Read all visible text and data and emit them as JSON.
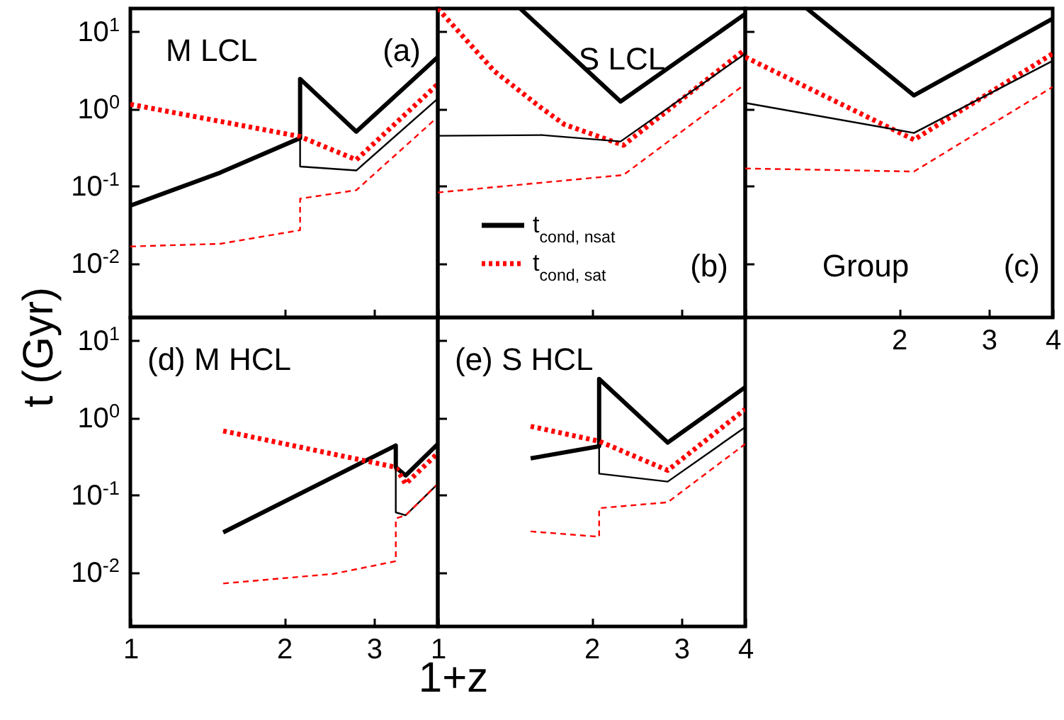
{
  "chart_data": [
    {
      "type": "line",
      "log": "xy",
      "xlim": [
        1,
        4
      ],
      "xticks": [
        1,
        2,
        3,
        4
      ],
      "ylim": [
        0.002,
        20
      ],
      "yticks": [
        {
          "value": 0.01,
          "label": "10$^{-2}$"
        },
        {
          "value": 0.1,
          "label": "10$^{-1}$"
        },
        {
          "value": 1,
          "label": "10$^{0}$"
        },
        {
          "value": 10,
          "label": "10$^{1}$"
        }
      ],
      "tick_labels": "y",
      "ylabel": "t (Gyr)",
      "annotations": [
        "M LCL",
        "(a)"
      ],
      "series": [
        {
          "color": "#000000",
          "line_style": "solid",
          "x": [
            1,
            1.5,
            2.15,
            2.15,
            2.77,
            4
          ],
          "values": [
            0.056,
            0.15,
            0.42,
            2.45,
            0.51,
            4.7
          ]
        },
        {
          "color": "#ff0000",
          "line_style": "dotted",
          "x": [
            1,
            2.15,
            2.77,
            4
          ],
          "values": [
            1.15,
            0.44,
            0.22,
            2.1
          ]
        },
        {
          "color": "#000000",
          "line_style": "solid",
          "x": [
            2.15,
            2.15,
            2.77,
            4
          ],
          "values": [
            0.42,
            0.18,
            0.16,
            1.36
          ]
        },
        {
          "color": "#ff0000",
          "line_style": "dashed",
          "x": [
            1,
            1.5,
            2.15,
            2.15,
            2.77,
            4
          ],
          "values": [
            0.0166,
            0.018,
            0.027,
            0.069,
            0.089,
            0.79
          ]
        }
      ]
    },
    {
      "type": "line",
      "log": "xy",
      "xlim": [
        1,
        4
      ],
      "xticks": [
        1,
        2,
        3,
        4
      ],
      "ylim": [
        0.002,
        20
      ],
      "yticks": [
        0.01,
        0.1,
        1,
        10
      ],
      "tick_labels": false,
      "legend": "bottom left",
      "annotations": [
        "S LCL",
        "(b)"
      ],
      "series": [
        {
          "name": "t$_{cond, nsat}$",
          "color": "#000000",
          "line_style": "solid",
          "x": [
            1.45,
            2.28,
            4
          ],
          "values": [
            20,
            1.25,
            17
          ]
        },
        {
          "name": "t$_{cond, sat}$",
          "color": "#ff0000",
          "line_style": "dotted",
          "x": [
            1,
            1.29,
            1.59,
            1.77,
            2.31,
            4
          ],
          "values": [
            20,
            3.1,
            1.05,
            0.63,
            0.34,
            5.9
          ]
        },
        {
          "color": "#000000",
          "line_style": "solid",
          "x": [
            1,
            1.6,
            2.28,
            4
          ],
          "values": [
            0.45,
            0.46,
            0.38,
            5.2
          ]
        },
        {
          "color": "#ff0000",
          "line_style": "dashed",
          "x": [
            1,
            2.31,
            4
          ],
          "values": [
            0.083,
            0.14,
            2.1
          ]
        }
      ]
    },
    {
      "type": "line",
      "log": "xy",
      "xlim": [
        1,
        4
      ],
      "xticks": [
        {
          "value": 1,
          "label": null
        },
        2,
        3,
        4
      ],
      "ylim": [
        0.002,
        20
      ],
      "yticks": [
        0.01,
        0.1,
        1,
        10
      ],
      "tick_labels": "x",
      "annotations": [
        "Group",
        "(c)"
      ],
      "series": [
        {
          "color": "#000000",
          "line_style": "solid",
          "x": [
            1.32,
            2.14,
            4
          ],
          "values": [
            20,
            1.5,
            14.8
          ]
        },
        {
          "color": "#ff0000",
          "line_style": "dotted",
          "x": [
            1,
            2.14,
            4
          ],
          "values": [
            4.7,
            0.4,
            5.2
          ]
        },
        {
          "color": "#000000",
          "line_style": "solid",
          "x": [
            1,
            2.14,
            4
          ],
          "values": [
            1.2,
            0.49,
            4.2
          ]
        },
        {
          "color": "#ff0000",
          "line_style": "dashed",
          "x": [
            1,
            2.14,
            4
          ],
          "values": [
            0.17,
            0.155,
            1.93
          ]
        }
      ]
    },
    {
      "type": "line",
      "log": "xy",
      "xlim": [
        1,
        4
      ],
      "xticks": [
        1,
        2,
        3,
        {
          "value": 4,
          "label": null
        }
      ],
      "ylim": [
        0.002,
        20
      ],
      "yticks": [
        {
          "value": 0.01,
          "label": "10$^{-2}$"
        },
        {
          "value": 0.1,
          "label": "10$^{-1}$"
        },
        {
          "value": 1,
          "label": "10$^{0}$"
        },
        {
          "value": 10,
          "label": "10$^{1}$"
        }
      ],
      "annotations": [
        "(d) M HCL"
      ],
      "series": [
        {
          "color": "#000000",
          "line_style": "solid",
          "x": [
            1.52,
            3.31,
            3.31,
            3.46,
            4
          ],
          "values": [
            0.033,
            0.44,
            0.23,
            0.18,
            0.46
          ]
        },
        {
          "color": "#ff0000",
          "line_style": "dotted",
          "x": [
            1.52,
            3.31,
            3.46,
            4
          ],
          "values": [
            0.68,
            0.23,
            0.14,
            0.35
          ]
        },
        {
          "color": "#000000",
          "line_style": "solid",
          "x": [
            3.31,
            3.31,
            3.46,
            4
          ],
          "values": [
            0.23,
            0.06,
            0.055,
            0.14
          ]
        },
        {
          "color": "#ff0000",
          "line_style": "dashed",
          "x": [
            1.52,
            2.5,
            3.31,
            3.31,
            3.46,
            4
          ],
          "values": [
            0.0072,
            0.0096,
            0.014,
            0.05,
            0.055,
            0.14
          ]
        }
      ]
    },
    {
      "type": "line",
      "log": "xy",
      "xlim": [
        1,
        4
      ],
      "xticks": [
        1,
        2,
        3,
        4
      ],
      "ylim": [
        0.002,
        20
      ],
      "yticks": [
        0.01,
        0.1,
        1,
        10
      ],
      "tick_labels": "x",
      "xlabel": "1+z",
      "annotations": [
        "(e) S HCL"
      ],
      "series": [
        {
          "color": "#000000",
          "line_style": "solid",
          "x": [
            1.52,
            2.07,
            2.07,
            2.82,
            4
          ],
          "values": [
            0.3,
            0.43,
            3.2,
            0.48,
            2.5
          ]
        },
        {
          "color": "#ff0000",
          "line_style": "dotted",
          "x": [
            1.52,
            2.07,
            2.82,
            4
          ],
          "values": [
            0.78,
            0.5,
            0.21,
            1.3
          ]
        },
        {
          "color": "#000000",
          "line_style": "solid",
          "x": [
            2.07,
            2.07,
            2.82,
            4
          ],
          "values": [
            0.43,
            0.19,
            0.15,
            0.76
          ]
        },
        {
          "color": "#ff0000",
          "line_style": "dashed",
          "x": [
            1.52,
            2.07,
            2.07,
            2.82,
            4
          ],
          "values": [
            0.034,
            0.029,
            0.068,
            0.081,
            0.46
          ]
        }
      ]
    }
  ]
}
